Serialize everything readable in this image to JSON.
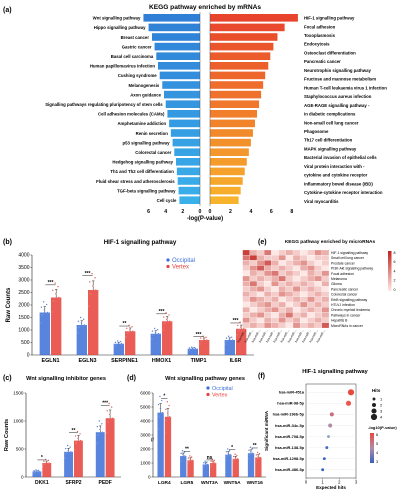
{
  "panel_labels": {
    "a": "(a)",
    "b": "(b)",
    "c": "(c)",
    "d": "(d)",
    "e": "(e)",
    "f": "(f)"
  },
  "chart_data": [
    {
      "type": "bar",
      "panel": "a",
      "title": "KEGG pathway enriched by mRNAs",
      "xlabel": "-log(P-value)",
      "orientation": "horizontal diverging",
      "xticks_left": [
        "6",
        "4",
        "2",
        "0"
      ],
      "xticks_right": [
        "0",
        "2",
        "4",
        "6",
        "8"
      ],
      "xlim_left": [
        0,
        7
      ],
      "xlim_right": [
        0,
        9
      ],
      "left_color": "#2f7fd6",
      "right_color": "#e8432c",
      "left_categories": [
        "Wnt signalling pathway",
        "Hippo signalling pathway",
        "Breast cancer",
        "Gastric cancer",
        "Basal cell carcinoma",
        "Human papillomavirus infection",
        "Cushing syndrome",
        "Melanogenesis",
        "Axon guidance",
        "Signalling pathways regulating pluripotency of stem cells",
        "Cell adhesion molecules (CAMs)",
        "Amphetamine addiction",
        "Renin secretion",
        "p53 signalling pathway",
        "Colorectal cancer",
        "Hedgehog signalling pathway",
        "Th1 and Th2 cell differentiation",
        "Fluid shear stress and atherosclerosis",
        "TGF-beta signalling pathway",
        "Cell cycle"
      ],
      "left_values": [
        6.6,
        6.0,
        5.6,
        5.3,
        5.1,
        4.9,
        4.7,
        4.4,
        4.2,
        4.0,
        3.8,
        3.6,
        3.4,
        3.2,
        3.0,
        2.8,
        2.7,
        2.6,
        2.5,
        2.4
      ],
      "right_categories": [
        "HIF-1 signalling pathway",
        "Focal adhesion",
        "Toxoplasmosis",
        "Endocytosis",
        "Osteoclast differentiation",
        "Pancreatic cancer",
        "Neurotrophin signalling pathway",
        "Fructose and mannose metabolism",
        "Human T-cell leukaemia virus 1 infection",
        "Staphylococcus aureus infection",
        "AGE-RAGE signalling pathway - in diabetic complications",
        "Non-small cell lung cancer",
        "Phagosome",
        "Th17 cell differentiation",
        "MAPK signalling pathway",
        "Bacterial invasion of epithelial cells",
        "Viral protein interaction with - cytokine and cytokine receptor",
        "Inflammatory bowel disease (IBD)",
        "Cytokine-cytokine receptor interaction",
        "Viral myocarditis"
      ],
      "right_display_lines": [
        "HIF-1 signalling pathway",
        "Focal adhesion",
        "Toxoplasmosis",
        "Endocytosis",
        "Osteoclast differentiation",
        "Pancreatic cancer",
        "Neurotrophin signalling pathway",
        "Fructose and mannose metabolism",
        "Human T-cell leukaemia virus 1 infection",
        "Staphylococcus aureus infection",
        "AGE-RAGE signalling pathway -",
        "in diabetic complications",
        "Non-small cell lung cancer",
        "Phagosome",
        "Th17 cell differentiation",
        "MAPK signalling pathway",
        "Bacterial invasion of epithelial cells",
        "Viral protein interaction with -",
        "cytokine and cytokine receptor",
        "Inflammatory bowel disease (IBD)",
        "Cytokine-cytokine receptor interaction",
        "Viral myocarditis"
      ],
      "right_values": [
        8.6,
        7.3,
        6.6,
        6.2,
        5.9,
        5.7,
        5.4,
        5.2,
        5.0,
        4.8,
        4.6,
        4.4,
        4.2,
        4.0,
        3.8,
        3.6,
        3.4,
        3.2,
        3.0,
        2.8
      ]
    },
    {
      "type": "bar",
      "panel": "b",
      "title": "HIF-1 signalling pathway",
      "ylabel": "Raw Counts",
      "ylim": [
        0,
        4000
      ],
      "yticks": [
        "0",
        "500",
        "1000",
        "1500",
        "2000",
        "2500",
        "3000",
        "3500",
        "4000"
      ],
      "categories": [
        "EGLN1",
        "EGLN3",
        "SERPINE1",
        "HMOX1",
        "TIMP1",
        "IL6R"
      ],
      "series": [
        {
          "name": "Occipital",
          "color": "#3b6fd8",
          "values": [
            1700,
            1200,
            450,
            850,
            250,
            600
          ]
        },
        {
          "name": "Vertex",
          "color": "#e6413a",
          "values": [
            2300,
            2600,
            950,
            1350,
            600,
            1050
          ]
        }
      ],
      "significance": [
        "***",
        "***",
        "**",
        "***",
        "***",
        "***"
      ]
    },
    {
      "type": "bar",
      "panel": "c",
      "title": "Wnt signalling inhibitor genes",
      "ylabel": "Raw Counts",
      "ylim": [
        0,
        1500
      ],
      "yticks": [
        "0",
        "500",
        "1000",
        "1500"
      ],
      "categories": [
        "DKK1",
        "SFRP2",
        "PEDF"
      ],
      "series": [
        {
          "name": "Occipital",
          "color": "#3b6fd8",
          "values": [
            100,
            450,
            800
          ]
        },
        {
          "name": "Vertex",
          "color": "#e6413a",
          "values": [
            250,
            650,
            1050
          ]
        }
      ],
      "significance": [
        "*",
        "**",
        "***"
      ]
    },
    {
      "type": "bar",
      "panel": "d",
      "title": "Wnt signalling pathway genes",
      "ylim": [
        0,
        6000
      ],
      "yticks": [
        "0",
        "1000",
        "2000",
        "3000",
        "4000",
        "5000",
        "6000"
      ],
      "ybreak": "//",
      "categories": [
        "LGR4",
        "LGR5",
        "WNT3A",
        "WNT5A",
        "WNT16"
      ],
      "series": [
        {
          "name": "Occipital",
          "color": "#3b6fd8",
          "values": [
            4600,
            1500,
            900,
            1600,
            1700
          ]
        },
        {
          "name": "Vertex",
          "color": "#e6413a",
          "values": [
            4300,
            1200,
            1000,
            1300,
            1400
          ]
        }
      ],
      "significance": [
        "*",
        "**",
        "ns",
        "*",
        "**"
      ]
    },
    {
      "type": "heatmap",
      "panel": "e",
      "title": "KEGG pathway enriched by microRNAs",
      "rows": [
        "HIF-1 signalling pathway",
        "Small cell lung cancer",
        "Prostate cancer",
        "PI3K-Akt signalling pathway",
        "Focal adhesion",
        "Melanoma",
        "Glioma",
        "Pancreatic cancer",
        "Colorectal cancer",
        "ErbB signalling pathway",
        "HTLV-I infection",
        "Chronic myeloid leukemia",
        "Pathways in cancer",
        "Hepatitis B",
        "MicroRNAs in cancer"
      ],
      "columns": [
        "hsa-miR-138-5p",
        "hsa-miR-196b-5p",
        "hsa-miR-34c-5p",
        "hsa-miR-451a",
        "hsa-miR-98-5p",
        "hsa-miR-1298-5p",
        "hsa-miR-486-5p",
        "hsa-miR-708-5p",
        "hsa-miR-122-5p",
        "hsa-miR-184",
        "hsa-miR-10b-5p",
        "hsa-miR-129-5p"
      ],
      "column_display": [
        "hsa-miR-...",
        "hsa-miR-...",
        "hsa-miR-...",
        "hsa-miR-...",
        "hsa-miR-...",
        "hsa-miR-...",
        "hsa-miR-...",
        "hsa-miR-...",
        "hsa-miR-...",
        "hsa-miR-...",
        "hsa-miR-...",
        "hsa-miR-..."
      ],
      "colorbar_ticks": [
        "8",
        "6",
        "4",
        "2",
        "0"
      ],
      "low_color": "#fde8e6",
      "high_color": "#c0231c",
      "values": [
        [
          6,
          2,
          1,
          4,
          0,
          1,
          2,
          1,
          0,
          1,
          3,
          2
        ],
        [
          4,
          6,
          2,
          1,
          1,
          3,
          0,
          2,
          1,
          0,
          1,
          1
        ],
        [
          2,
          1,
          3,
          5,
          2,
          0,
          1,
          2,
          3,
          1,
          0,
          1
        ],
        [
          1,
          3,
          5,
          2,
          1,
          2,
          1,
          0,
          2,
          3,
          1,
          0
        ],
        [
          0,
          2,
          1,
          3,
          4,
          1,
          2,
          1,
          0,
          2,
          1,
          3
        ],
        [
          3,
          1,
          2,
          1,
          2,
          4,
          1,
          0,
          1,
          2,
          3,
          1
        ],
        [
          2,
          4,
          1,
          0,
          3,
          1,
          2,
          1,
          2,
          1,
          0,
          2
        ],
        [
          1,
          2,
          3,
          1,
          0,
          2,
          1,
          3,
          1,
          2,
          1,
          0
        ],
        [
          2,
          1,
          0,
          2,
          1,
          3,
          2,
          1,
          0,
          1,
          2,
          1
        ],
        [
          1,
          3,
          2,
          1,
          2,
          0,
          1,
          2,
          1,
          3,
          1,
          2
        ],
        [
          0,
          1,
          2,
          3,
          1,
          2,
          0,
          1,
          3,
          1,
          2,
          1
        ],
        [
          2,
          0,
          1,
          2,
          3,
          1,
          2,
          0,
          1,
          2,
          1,
          3
        ],
        [
          1,
          2,
          3,
          1,
          0,
          2,
          4,
          1,
          2,
          0,
          1,
          2
        ],
        [
          3,
          1,
          0,
          2,
          1,
          3,
          1,
          2,
          0,
          1,
          2,
          1
        ],
        [
          1,
          2,
          1,
          3,
          2,
          1,
          0,
          3,
          1,
          2,
          1,
          5
        ]
      ]
    },
    {
      "type": "scatter",
      "panel": "f",
      "title": "HIF-1 signalling pathway",
      "xlabel": "Expected hits",
      "ylabel": "Significant miRNA",
      "xlim": [
        0,
        3
      ],
      "xticks": [
        "0",
        "1",
        "2",
        "3"
      ],
      "categories": [
        "hsa-miR-451a",
        "hsa-miR-98-5p",
        "hsa-miR-196b-5p",
        "hsa-miR-34c-5p",
        "hsa-miR-708-5p",
        "hsa-miR-138-5p",
        "hsa-miR-1298-5p",
        "hsa-miR-486-5p"
      ],
      "x": [
        2.7,
        2.55,
        1.55,
        1.45,
        1.35,
        1.25,
        1.1,
        1.0
      ],
      "hits": [
        4,
        3,
        2,
        2,
        1,
        1,
        1,
        1
      ],
      "pvalue_color": [
        "#e64a3c",
        "#e8574a",
        "#cc6b7e",
        "#b28ba6",
        "#8fa0c4",
        "#3f68c8",
        "#3a62c4",
        "#3560c2"
      ],
      "legend": {
        "size_title": "Hits",
        "size_values": [
          "1",
          "2",
          "3",
          "4"
        ],
        "color_title": "-log10(P-value)",
        "color_ticks": [
          "6",
          "5",
          "4",
          "3"
        ]
      }
    }
  ]
}
